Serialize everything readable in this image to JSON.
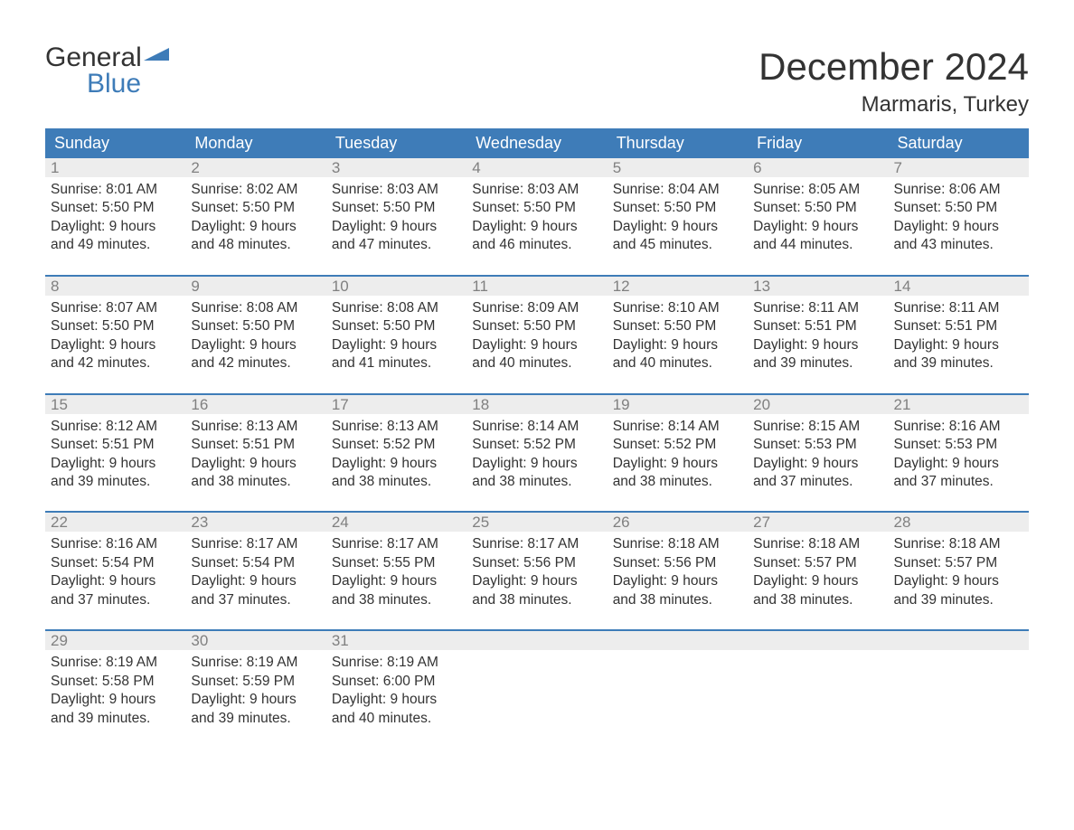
{
  "logo": {
    "line1": "General",
    "line2": "Blue"
  },
  "title": "December 2024",
  "location": "Marmaris, Turkey",
  "colors": {
    "header_bg": "#3e7cb8",
    "header_text": "#ffffff",
    "daynum_bg": "#ededed",
    "daynum_text": "#808080",
    "body_text": "#333333",
    "week_divider": "#3e7cb8",
    "page_bg": "#ffffff",
    "logo_blue": "#3e7cb8"
  },
  "day_headers": [
    "Sunday",
    "Monday",
    "Tuesday",
    "Wednesday",
    "Thursday",
    "Friday",
    "Saturday"
  ],
  "labels": {
    "sunrise": "Sunrise:",
    "sunset": "Sunset:",
    "daylight": "Daylight:"
  },
  "weeks": [
    [
      {
        "n": "1",
        "sunrise": "8:01 AM",
        "sunset": "5:50 PM",
        "dl1": "9 hours",
        "dl2": "and 49 minutes."
      },
      {
        "n": "2",
        "sunrise": "8:02 AM",
        "sunset": "5:50 PM",
        "dl1": "9 hours",
        "dl2": "and 48 minutes."
      },
      {
        "n": "3",
        "sunrise": "8:03 AM",
        "sunset": "5:50 PM",
        "dl1": "9 hours",
        "dl2": "and 47 minutes."
      },
      {
        "n": "4",
        "sunrise": "8:03 AM",
        "sunset": "5:50 PM",
        "dl1": "9 hours",
        "dl2": "and 46 minutes."
      },
      {
        "n": "5",
        "sunrise": "8:04 AM",
        "sunset": "5:50 PM",
        "dl1": "9 hours",
        "dl2": "and 45 minutes."
      },
      {
        "n": "6",
        "sunrise": "8:05 AM",
        "sunset": "5:50 PM",
        "dl1": "9 hours",
        "dl2": "and 44 minutes."
      },
      {
        "n": "7",
        "sunrise": "8:06 AM",
        "sunset": "5:50 PM",
        "dl1": "9 hours",
        "dl2": "and 43 minutes."
      }
    ],
    [
      {
        "n": "8",
        "sunrise": "8:07 AM",
        "sunset": "5:50 PM",
        "dl1": "9 hours",
        "dl2": "and 42 minutes."
      },
      {
        "n": "9",
        "sunrise": "8:08 AM",
        "sunset": "5:50 PM",
        "dl1": "9 hours",
        "dl2": "and 42 minutes."
      },
      {
        "n": "10",
        "sunrise": "8:08 AM",
        "sunset": "5:50 PM",
        "dl1": "9 hours",
        "dl2": "and 41 minutes."
      },
      {
        "n": "11",
        "sunrise": "8:09 AM",
        "sunset": "5:50 PM",
        "dl1": "9 hours",
        "dl2": "and 40 minutes."
      },
      {
        "n": "12",
        "sunrise": "8:10 AM",
        "sunset": "5:50 PM",
        "dl1": "9 hours",
        "dl2": "and 40 minutes."
      },
      {
        "n": "13",
        "sunrise": "8:11 AM",
        "sunset": "5:51 PM",
        "dl1": "9 hours",
        "dl2": "and 39 minutes."
      },
      {
        "n": "14",
        "sunrise": "8:11 AM",
        "sunset": "5:51 PM",
        "dl1": "9 hours",
        "dl2": "and 39 minutes."
      }
    ],
    [
      {
        "n": "15",
        "sunrise": "8:12 AM",
        "sunset": "5:51 PM",
        "dl1": "9 hours",
        "dl2": "and 39 minutes."
      },
      {
        "n": "16",
        "sunrise": "8:13 AM",
        "sunset": "5:51 PM",
        "dl1": "9 hours",
        "dl2": "and 38 minutes."
      },
      {
        "n": "17",
        "sunrise": "8:13 AM",
        "sunset": "5:52 PM",
        "dl1": "9 hours",
        "dl2": "and 38 minutes."
      },
      {
        "n": "18",
        "sunrise": "8:14 AM",
        "sunset": "5:52 PM",
        "dl1": "9 hours",
        "dl2": "and 38 minutes."
      },
      {
        "n": "19",
        "sunrise": "8:14 AM",
        "sunset": "5:52 PM",
        "dl1": "9 hours",
        "dl2": "and 38 minutes."
      },
      {
        "n": "20",
        "sunrise": "8:15 AM",
        "sunset": "5:53 PM",
        "dl1": "9 hours",
        "dl2": "and 37 minutes."
      },
      {
        "n": "21",
        "sunrise": "8:16 AM",
        "sunset": "5:53 PM",
        "dl1": "9 hours",
        "dl2": "and 37 minutes."
      }
    ],
    [
      {
        "n": "22",
        "sunrise": "8:16 AM",
        "sunset": "5:54 PM",
        "dl1": "9 hours",
        "dl2": "and 37 minutes."
      },
      {
        "n": "23",
        "sunrise": "8:17 AM",
        "sunset": "5:54 PM",
        "dl1": "9 hours",
        "dl2": "and 37 minutes."
      },
      {
        "n": "24",
        "sunrise": "8:17 AM",
        "sunset": "5:55 PM",
        "dl1": "9 hours",
        "dl2": "and 38 minutes."
      },
      {
        "n": "25",
        "sunrise": "8:17 AM",
        "sunset": "5:56 PM",
        "dl1": "9 hours",
        "dl2": "and 38 minutes."
      },
      {
        "n": "26",
        "sunrise": "8:18 AM",
        "sunset": "5:56 PM",
        "dl1": "9 hours",
        "dl2": "and 38 minutes."
      },
      {
        "n": "27",
        "sunrise": "8:18 AM",
        "sunset": "5:57 PM",
        "dl1": "9 hours",
        "dl2": "and 38 minutes."
      },
      {
        "n": "28",
        "sunrise": "8:18 AM",
        "sunset": "5:57 PM",
        "dl1": "9 hours",
        "dl2": "and 39 minutes."
      }
    ],
    [
      {
        "n": "29",
        "sunrise": "8:19 AM",
        "sunset": "5:58 PM",
        "dl1": "9 hours",
        "dl2": "and 39 minutes."
      },
      {
        "n": "30",
        "sunrise": "8:19 AM",
        "sunset": "5:59 PM",
        "dl1": "9 hours",
        "dl2": "and 39 minutes."
      },
      {
        "n": "31",
        "sunrise": "8:19 AM",
        "sunset": "6:00 PM",
        "dl1": "9 hours",
        "dl2": "and 40 minutes."
      },
      {
        "empty": true
      },
      {
        "empty": true
      },
      {
        "empty": true
      },
      {
        "empty": true
      }
    ]
  ]
}
